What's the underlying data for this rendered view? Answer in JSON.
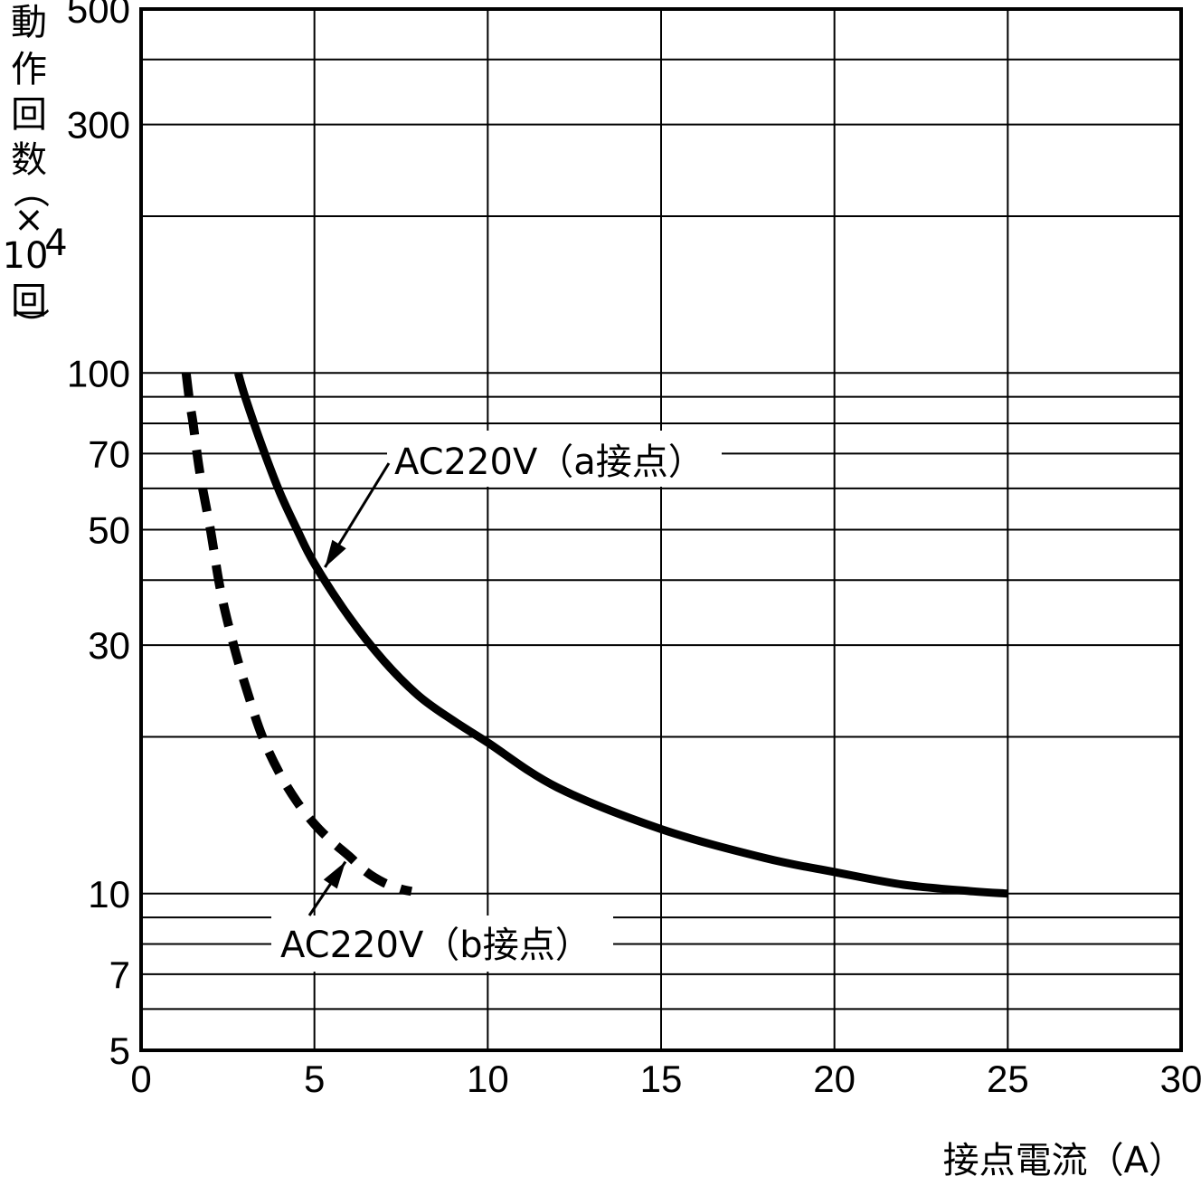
{
  "chart_data": {
    "type": "line",
    "xlabel": "接点電流（A）",
    "ylabel_lines": [
      "動",
      "作",
      "回",
      "数",
      "（",
      "×",
      "10",
      "回",
      "）"
    ],
    "ylabel_superscript": "4",
    "x_scale": "linear",
    "y_scale": "log",
    "xlim": [
      0,
      30
    ],
    "ylim": [
      5,
      500
    ],
    "x_ticks": [
      "0",
      "5",
      "10",
      "15",
      "20",
      "25",
      "30"
    ],
    "y_ticks": [
      {
        "value": 500,
        "label": "500"
      },
      {
        "value": 300,
        "label": "300"
      },
      {
        "value": 100,
        "label": "100"
      },
      {
        "value": 70,
        "label": "70"
      },
      {
        "value": 50,
        "label": "50"
      },
      {
        "value": 30,
        "label": "30"
      },
      {
        "value": 10,
        "label": "10"
      },
      {
        "value": 7,
        "label": "7"
      },
      {
        "value": 5,
        "label": "5"
      }
    ],
    "y_gridlines": [
      5,
      6,
      7,
      8,
      9,
      10,
      20,
      30,
      40,
      50,
      60,
      70,
      80,
      90,
      100,
      200,
      300,
      400,
      500
    ],
    "x_gridlines": [
      0,
      5,
      10,
      15,
      20,
      25,
      30
    ],
    "grid": true,
    "series": [
      {
        "name": "AC220V（a接点）",
        "style": "solid",
        "x": [
          2.8,
          3.0,
          3.5,
          4.0,
          4.5,
          5.0,
          6.0,
          7.0,
          8.0,
          9.0,
          10.0,
          12.0,
          15.0,
          18.0,
          20.0,
          22.0,
          24.0,
          25.0
        ],
        "y": [
          100,
          90,
          72,
          59,
          50,
          43,
          34,
          28,
          24,
          21.5,
          19.5,
          16,
          13.3,
          11.7,
          11,
          10.4,
          10.1,
          10
        ]
      },
      {
        "name": "AC220V（b接点）",
        "style": "dashed",
        "x": [
          1.3,
          1.4,
          1.5,
          1.7,
          2.0,
          2.3,
          2.7,
          3.1,
          3.5,
          4.0,
          4.5,
          5.0,
          5.5,
          6.0,
          6.5,
          7.0,
          7.5,
          7.8
        ],
        "y": [
          100,
          88,
          80,
          64,
          50,
          38,
          29.5,
          24,
          20,
          17,
          15,
          13.6,
          12.6,
          11.8,
          11,
          10.5,
          10.2,
          10.1
        ]
      }
    ],
    "annotations": [
      {
        "text": "AC220V（a接点）",
        "series": 0,
        "x": 5.2,
        "y": 42
      },
      {
        "text": "AC220V（b接点）",
        "series": 1,
        "x": 6.0,
        "y": 11.7
      }
    ]
  }
}
